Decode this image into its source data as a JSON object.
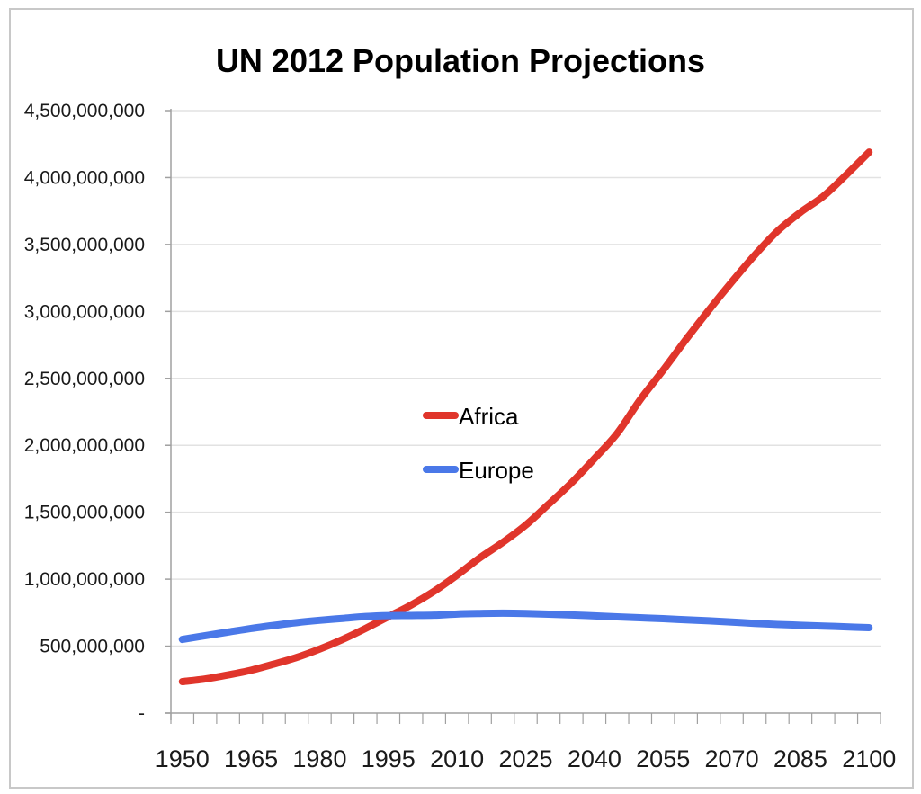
{
  "chart_data": {
    "type": "line",
    "title": "UN 2012 Population Projections",
    "xlabel": "",
    "ylabel": "",
    "ylim": [
      0,
      4500000000
    ],
    "ytick_step": 500000000,
    "ytick_labels": [
      "-",
      "500,000,000",
      "1,000,000,000",
      "1,500,000,000",
      "2,000,000,000",
      "2,500,000,000",
      "3,000,000,000",
      "3,500,000,000",
      "4,000,000,000",
      "4,500,000,000"
    ],
    "x": [
      1950,
      1955,
      1960,
      1965,
      1970,
      1975,
      1980,
      1985,
      1990,
      1995,
      2000,
      2005,
      2010,
      2015,
      2020,
      2025,
      2030,
      2035,
      2040,
      2045,
      2050,
      2055,
      2060,
      2065,
      2070,
      2075,
      2080,
      2085,
      2090,
      2095,
      2100
    ],
    "xtick_labels": [
      "1950",
      "1965",
      "1980",
      "1995",
      "2010",
      "2025",
      "2040",
      "2055",
      "2070",
      "2085",
      "2100"
    ],
    "xtick_label_every": 3,
    "grid": "horizontal",
    "legend_position": "center",
    "series": [
      {
        "name": "Africa",
        "color": "#e0352b",
        "values": [
          235000000,
          255000000,
          285000000,
          320000000,
          366000000,
          416000000,
          478000000,
          550000000,
          632000000,
          720000000,
          808000000,
          910000000,
          1030000000,
          1160000000,
          1275000000,
          1404000000,
          1560000000,
          1720000000,
          1900000000,
          2090000000,
          2340000000,
          2560000000,
          2790000000,
          3010000000,
          3220000000,
          3420000000,
          3600000000,
          3740000000,
          3860000000,
          4020000000,
          4190000000
        ]
      },
      {
        "name": "Europe",
        "color": "#4a78e8",
        "values": [
          550000000,
          578000000,
          605000000,
          632000000,
          655000000,
          676000000,
          693000000,
          707000000,
          721000000,
          728000000,
          729000000,
          731000000,
          740000000,
          744000000,
          746000000,
          744000000,
          739000000,
          733000000,
          726000000,
          719000000,
          712000000,
          705000000,
          697000000,
          689000000,
          680000000,
          670000000,
          662000000,
          656000000,
          650000000,
          644000000,
          638000000
        ]
      }
    ]
  }
}
